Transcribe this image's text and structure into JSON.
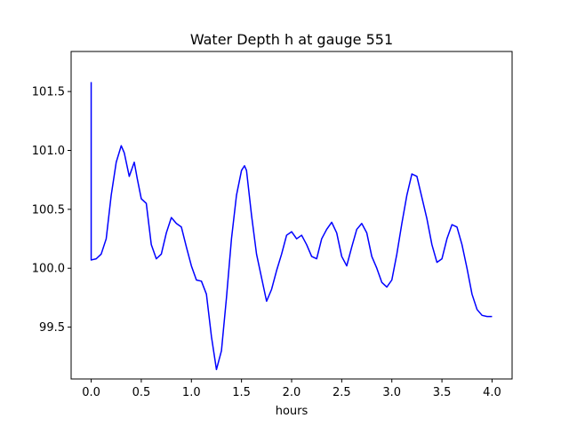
{
  "chart_data": {
    "type": "line",
    "title": "Water Depth h at gauge 551",
    "xlabel": "hours",
    "ylabel": "",
    "xlim": [
      -0.2,
      4.2
    ],
    "ylim": [
      99.06,
      101.84
    ],
    "xticks": [
      0.0,
      0.5,
      1.0,
      1.5,
      2.0,
      2.5,
      3.0,
      3.5,
      4.0
    ],
    "xtick_labels": [
      "0.0",
      "0.5",
      "1.0",
      "1.5",
      "2.0",
      "2.5",
      "3.0",
      "3.5",
      "4.0"
    ],
    "yticks": [
      99.5,
      100.0,
      100.5,
      101.0,
      101.5
    ],
    "ytick_labels": [
      "99.5",
      "100.0",
      "100.5",
      "101.0",
      "101.5"
    ],
    "grid": false,
    "series": [
      {
        "color": "#0000ff",
        "x": [
          0.0,
          0.0,
          0.0,
          0.05,
          0.1,
          0.15,
          0.2,
          0.25,
          0.3,
          0.33,
          0.38,
          0.43,
          0.46,
          0.5,
          0.55,
          0.6,
          0.65,
          0.7,
          0.75,
          0.8,
          0.85,
          0.9,
          0.95,
          1.0,
          1.05,
          1.1,
          1.15,
          1.2,
          1.25,
          1.3,
          1.35,
          1.4,
          1.45,
          1.5,
          1.53,
          1.55,
          1.6,
          1.65,
          1.7,
          1.75,
          1.8,
          1.85,
          1.9,
          1.95,
          2.0,
          2.05,
          2.1,
          2.15,
          2.2,
          2.25,
          2.3,
          2.35,
          2.4,
          2.45,
          2.5,
          2.55,
          2.6,
          2.65,
          2.7,
          2.75,
          2.8,
          2.85,
          2.9,
          2.95,
          3.0,
          3.05,
          3.1,
          3.15,
          3.2,
          3.25,
          3.3,
          3.35,
          3.4,
          3.45,
          3.5,
          3.55,
          3.6,
          3.65,
          3.7,
          3.75,
          3.8,
          3.85,
          3.9,
          3.95,
          4.0
        ],
        "y": [
          101.58,
          100.07,
          100.07,
          100.08,
          100.12,
          100.25,
          100.62,
          100.9,
          101.04,
          100.98,
          100.78,
          100.9,
          100.76,
          100.59,
          100.55,
          100.2,
          100.08,
          100.12,
          100.3,
          100.43,
          100.38,
          100.35,
          100.18,
          100.02,
          99.9,
          99.89,
          99.78,
          99.42,
          99.14,
          99.3,
          99.75,
          100.25,
          100.62,
          100.83,
          100.87,
          100.83,
          100.45,
          100.12,
          99.92,
          99.72,
          99.82,
          99.98,
          100.12,
          100.28,
          100.31,
          100.25,
          100.28,
          100.2,
          100.1,
          100.08,
          100.25,
          100.33,
          100.39,
          100.3,
          100.1,
          100.02,
          100.18,
          100.33,
          100.38,
          100.3,
          100.1,
          100.0,
          99.88,
          99.84,
          99.9,
          100.12,
          100.38,
          100.62,
          100.8,
          100.78,
          100.6,
          100.42,
          100.2,
          100.05,
          100.08,
          100.25,
          100.37,
          100.35,
          100.2,
          100.0,
          99.78,
          99.65,
          99.6,
          99.59,
          99.59
        ]
      }
    ]
  }
}
